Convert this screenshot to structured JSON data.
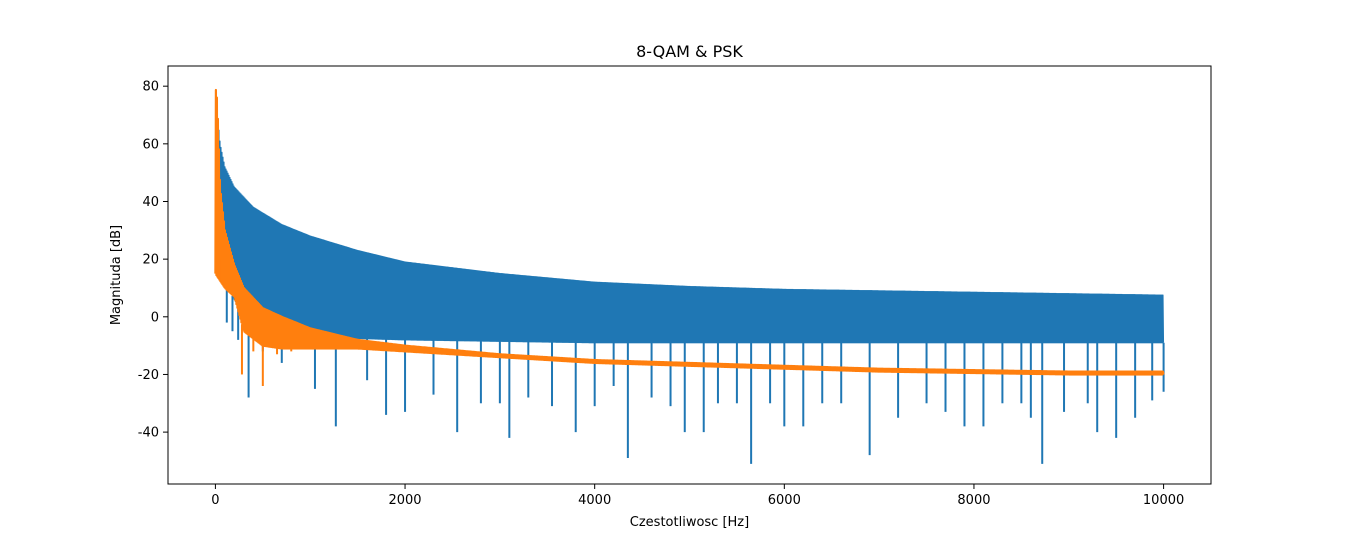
{
  "chart_data": {
    "type": "line",
    "title": "8-QAM & PSK",
    "xlabel": "Czestotliwosc [Hz]",
    "ylabel": "Magnituda [dB]",
    "xlim": [
      -500,
      10500
    ],
    "ylim": [
      -58,
      87
    ],
    "xticks": [
      0,
      2000,
      4000,
      6000,
      8000,
      10000
    ],
    "yticks": [
      -40,
      -20,
      0,
      20,
      40,
      60,
      80
    ],
    "grid": false,
    "legend": "none",
    "series": [
      {
        "color": "#1f77b4",
        "envelope_upper": [
          [
            0,
            78
          ],
          [
            50,
            60
          ],
          [
            100,
            52
          ],
          [
            200,
            45
          ],
          [
            400,
            38
          ],
          [
            700,
            32
          ],
          [
            1000,
            28
          ],
          [
            1500,
            23
          ],
          [
            2000,
            19
          ],
          [
            3000,
            15
          ],
          [
            4000,
            12
          ],
          [
            5000,
            10.5
          ],
          [
            6000,
            9.5
          ],
          [
            7000,
            9
          ],
          [
            8000,
            8.5
          ],
          [
            9000,
            8
          ],
          [
            10000,
            7.5
          ]
        ],
        "envelope_lower": [
          [
            0,
            20
          ],
          [
            100,
            12
          ],
          [
            300,
            0
          ],
          [
            600,
            -5
          ],
          [
            1000,
            -7
          ],
          [
            2000,
            -8
          ],
          [
            4000,
            -9
          ],
          [
            6000,
            -9
          ],
          [
            8000,
            -9
          ],
          [
            10000,
            -9
          ]
        ],
        "spikes": [
          [
            120,
            -2
          ],
          [
            180,
            -5
          ],
          [
            240,
            -8
          ],
          [
            350,
            -28
          ],
          [
            500,
            -12
          ],
          [
            700,
            -16
          ],
          [
            1050,
            -25
          ],
          [
            1270,
            -38
          ],
          [
            1600,
            -22
          ],
          [
            1800,
            -34
          ],
          [
            2000,
            -33
          ],
          [
            2300,
            -27
          ],
          [
            2550,
            -40
          ],
          [
            2800,
            -30
          ],
          [
            3000,
            -30
          ],
          [
            3100,
            -42
          ],
          [
            3300,
            -28
          ],
          [
            3550,
            -31
          ],
          [
            3800,
            -40
          ],
          [
            4000,
            -31
          ],
          [
            4200,
            -24
          ],
          [
            4350,
            -49
          ],
          [
            4600,
            -28
          ],
          [
            4800,
            -31
          ],
          [
            4950,
            -40
          ],
          [
            5150,
            -40
          ],
          [
            5300,
            -30
          ],
          [
            5500,
            -30
          ],
          [
            5650,
            -51
          ],
          [
            5850,
            -30
          ],
          [
            6000,
            -38
          ],
          [
            6200,
            -38
          ],
          [
            6400,
            -30
          ],
          [
            6600,
            -30
          ],
          [
            6900,
            -48
          ],
          [
            7200,
            -35
          ],
          [
            7500,
            -30
          ],
          [
            7700,
            -33
          ],
          [
            7900,
            -38
          ],
          [
            8100,
            -38
          ],
          [
            8300,
            -30
          ],
          [
            8500,
            -30
          ],
          [
            8600,
            -35
          ],
          [
            8720,
            -51
          ],
          [
            8950,
            -33
          ],
          [
            9200,
            -30
          ],
          [
            9300,
            -40
          ],
          [
            9500,
            -42
          ],
          [
            9700,
            -35
          ],
          [
            9880,
            -29
          ],
          [
            10000,
            -26
          ]
        ]
      },
      {
        "color": "#ff7f0e",
        "envelope_upper": [
          [
            0,
            80
          ],
          [
            20,
            75
          ],
          [
            50,
            45
          ],
          [
            100,
            30
          ],
          [
            200,
            18
          ],
          [
            300,
            10
          ],
          [
            500,
            3
          ],
          [
            700,
            0
          ],
          [
            1000,
            -4
          ],
          [
            1500,
            -8
          ],
          [
            2000,
            -10
          ],
          [
            3000,
            -13
          ],
          [
            4000,
            -15
          ],
          [
            5000,
            -16
          ],
          [
            6000,
            -17
          ],
          [
            7000,
            -18
          ],
          [
            8000,
            -18.5
          ],
          [
            9000,
            -19
          ],
          [
            10000,
            -19
          ]
        ],
        "envelope_lower": [
          [
            0,
            15
          ],
          [
            100,
            10
          ],
          [
            200,
            7
          ],
          [
            300,
            -5
          ],
          [
            500,
            -10
          ],
          [
            700,
            -11
          ],
          [
            1000,
            -11
          ],
          [
            1500,
            -11
          ],
          [
            2000,
            -12
          ],
          [
            3000,
            -14
          ],
          [
            4000,
            -16
          ],
          [
            5000,
            -17
          ],
          [
            6000,
            -18
          ],
          [
            7000,
            -19
          ],
          [
            8000,
            -19.5
          ],
          [
            9000,
            -20
          ],
          [
            10000,
            -20
          ]
        ],
        "spikes": [
          [
            30,
            15
          ],
          [
            60,
            20
          ],
          [
            100,
            12
          ],
          [
            140,
            9
          ],
          [
            200,
            8
          ],
          [
            280,
            -20
          ],
          [
            400,
            -12
          ],
          [
            500,
            -24
          ],
          [
            650,
            -13
          ],
          [
            800,
            -12
          ],
          [
            950,
            -10
          ]
        ]
      }
    ]
  }
}
